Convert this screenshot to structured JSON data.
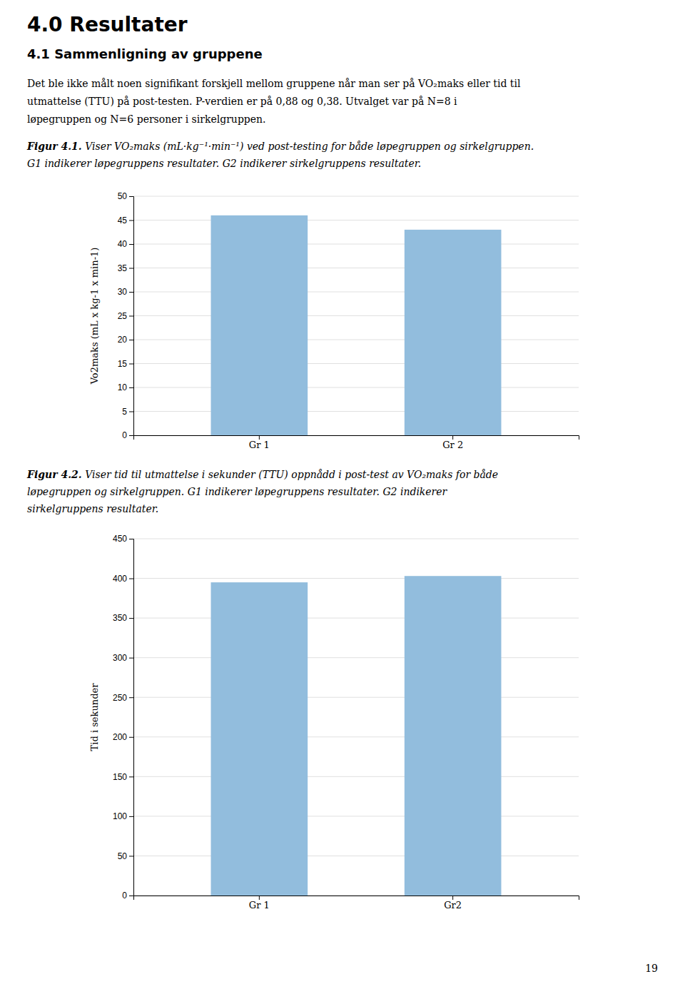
{
  "page_title": "4.0 Resultater",
  "section_title": "4.1 Sammenligning av gruppene",
  "body_text": [
    "Det ble ikke målt noen signifikant forskjell mellom gruppene når man ser på VO₂maks eller tid til",
    "utmattelse (TTU) på post-testen. P-verdien er på 0,88 og 0,38. Utvalget var på N=8 i",
    "løpegruppen og N=6 personer i sirkelgruppen."
  ],
  "captions": [
    {
      "label": "Figur 4.1.",
      "lines": [
        " Viser VO₂maks (mL·kg⁻¹·min⁻¹) ved post-testing for både løpegruppen og sirkelgruppen.",
        "G1 indikerer løpegruppens resultater. G2 indikerer sirkelgruppens resultater."
      ]
    },
    {
      "label": "Figur 4.2.",
      "lines": [
        " Viser tid til utmattelse i sekunder (TTU) oppnådd i post-test av VO₂maks for både",
        "løpegruppen og sirkelgruppen. G1 indikerer løpegruppens resultater. G2 indikerer",
        "sirkelgruppens resultater."
      ]
    }
  ],
  "page_number": "19",
  "chart_data": [
    {
      "type": "bar",
      "categories": [
        "Gr 1",
        "Gr 2"
      ],
      "values": [
        46.0,
        43.0
      ],
      "ylabel": "Vo2maks (mL x kg-1 x min-1)",
      "ylim": [
        0,
        50
      ],
      "yticks": [
        0,
        5,
        10,
        15,
        20,
        25,
        30,
        35,
        40,
        45,
        50
      ],
      "color": "#92BDDD",
      "grid": true
    },
    {
      "type": "bar",
      "categories": [
        "Gr 1",
        "Gr2"
      ],
      "values": [
        395,
        403
      ],
      "ylabel": "Tid i sekunder",
      "ylim": [
        0,
        450
      ],
      "yticks": [
        0,
        50,
        100,
        150,
        200,
        250,
        300,
        350,
        400,
        450
      ],
      "color": "#92BDDD",
      "grid": true
    }
  ]
}
